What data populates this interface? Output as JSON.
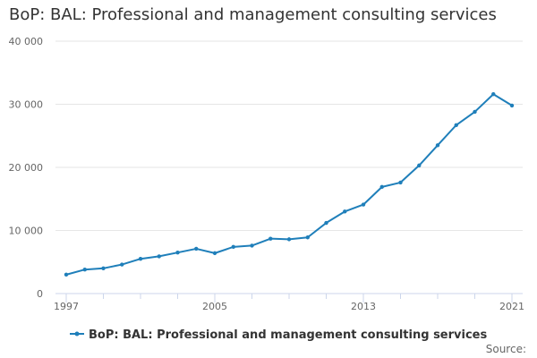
{
  "chart_data": {
    "type": "line",
    "title": "BoP: BAL: Professional and management consulting services",
    "xlabel": "",
    "ylabel": "",
    "x": [
      1997,
      1998,
      1999,
      2000,
      2001,
      2002,
      2003,
      2004,
      2005,
      2006,
      2007,
      2008,
      2009,
      2010,
      2011,
      2012,
      2013,
      2014,
      2015,
      2016,
      2017,
      2018,
      2019,
      2020,
      2021
    ],
    "series": [
      {
        "name": "BoP: BAL: Professional and management consulting services",
        "color": "#1f7fba",
        "values": [
          3000,
          3800,
          4000,
          4600,
          5500,
          5900,
          6500,
          7100,
          6400,
          7400,
          7600,
          8700,
          8600,
          8900,
          11200,
          13000,
          14100,
          16900,
          17600,
          20300,
          23500,
          26700,
          28800,
          31600,
          29800
        ]
      }
    ],
    "ylim": [
      0,
      40000
    ],
    "yticks": [
      0,
      10000,
      20000,
      30000,
      40000
    ],
    "ytick_labels": [
      "0",
      "10 000",
      "20 000",
      "30 000",
      "40 000"
    ],
    "xticks": [
      1997,
      2005,
      2013,
      2021
    ],
    "xtick_labels": [
      "1997",
      "2005",
      "2013",
      "2021"
    ],
    "grid": true,
    "legend_position": "bottom",
    "source_label": "Source:"
  }
}
